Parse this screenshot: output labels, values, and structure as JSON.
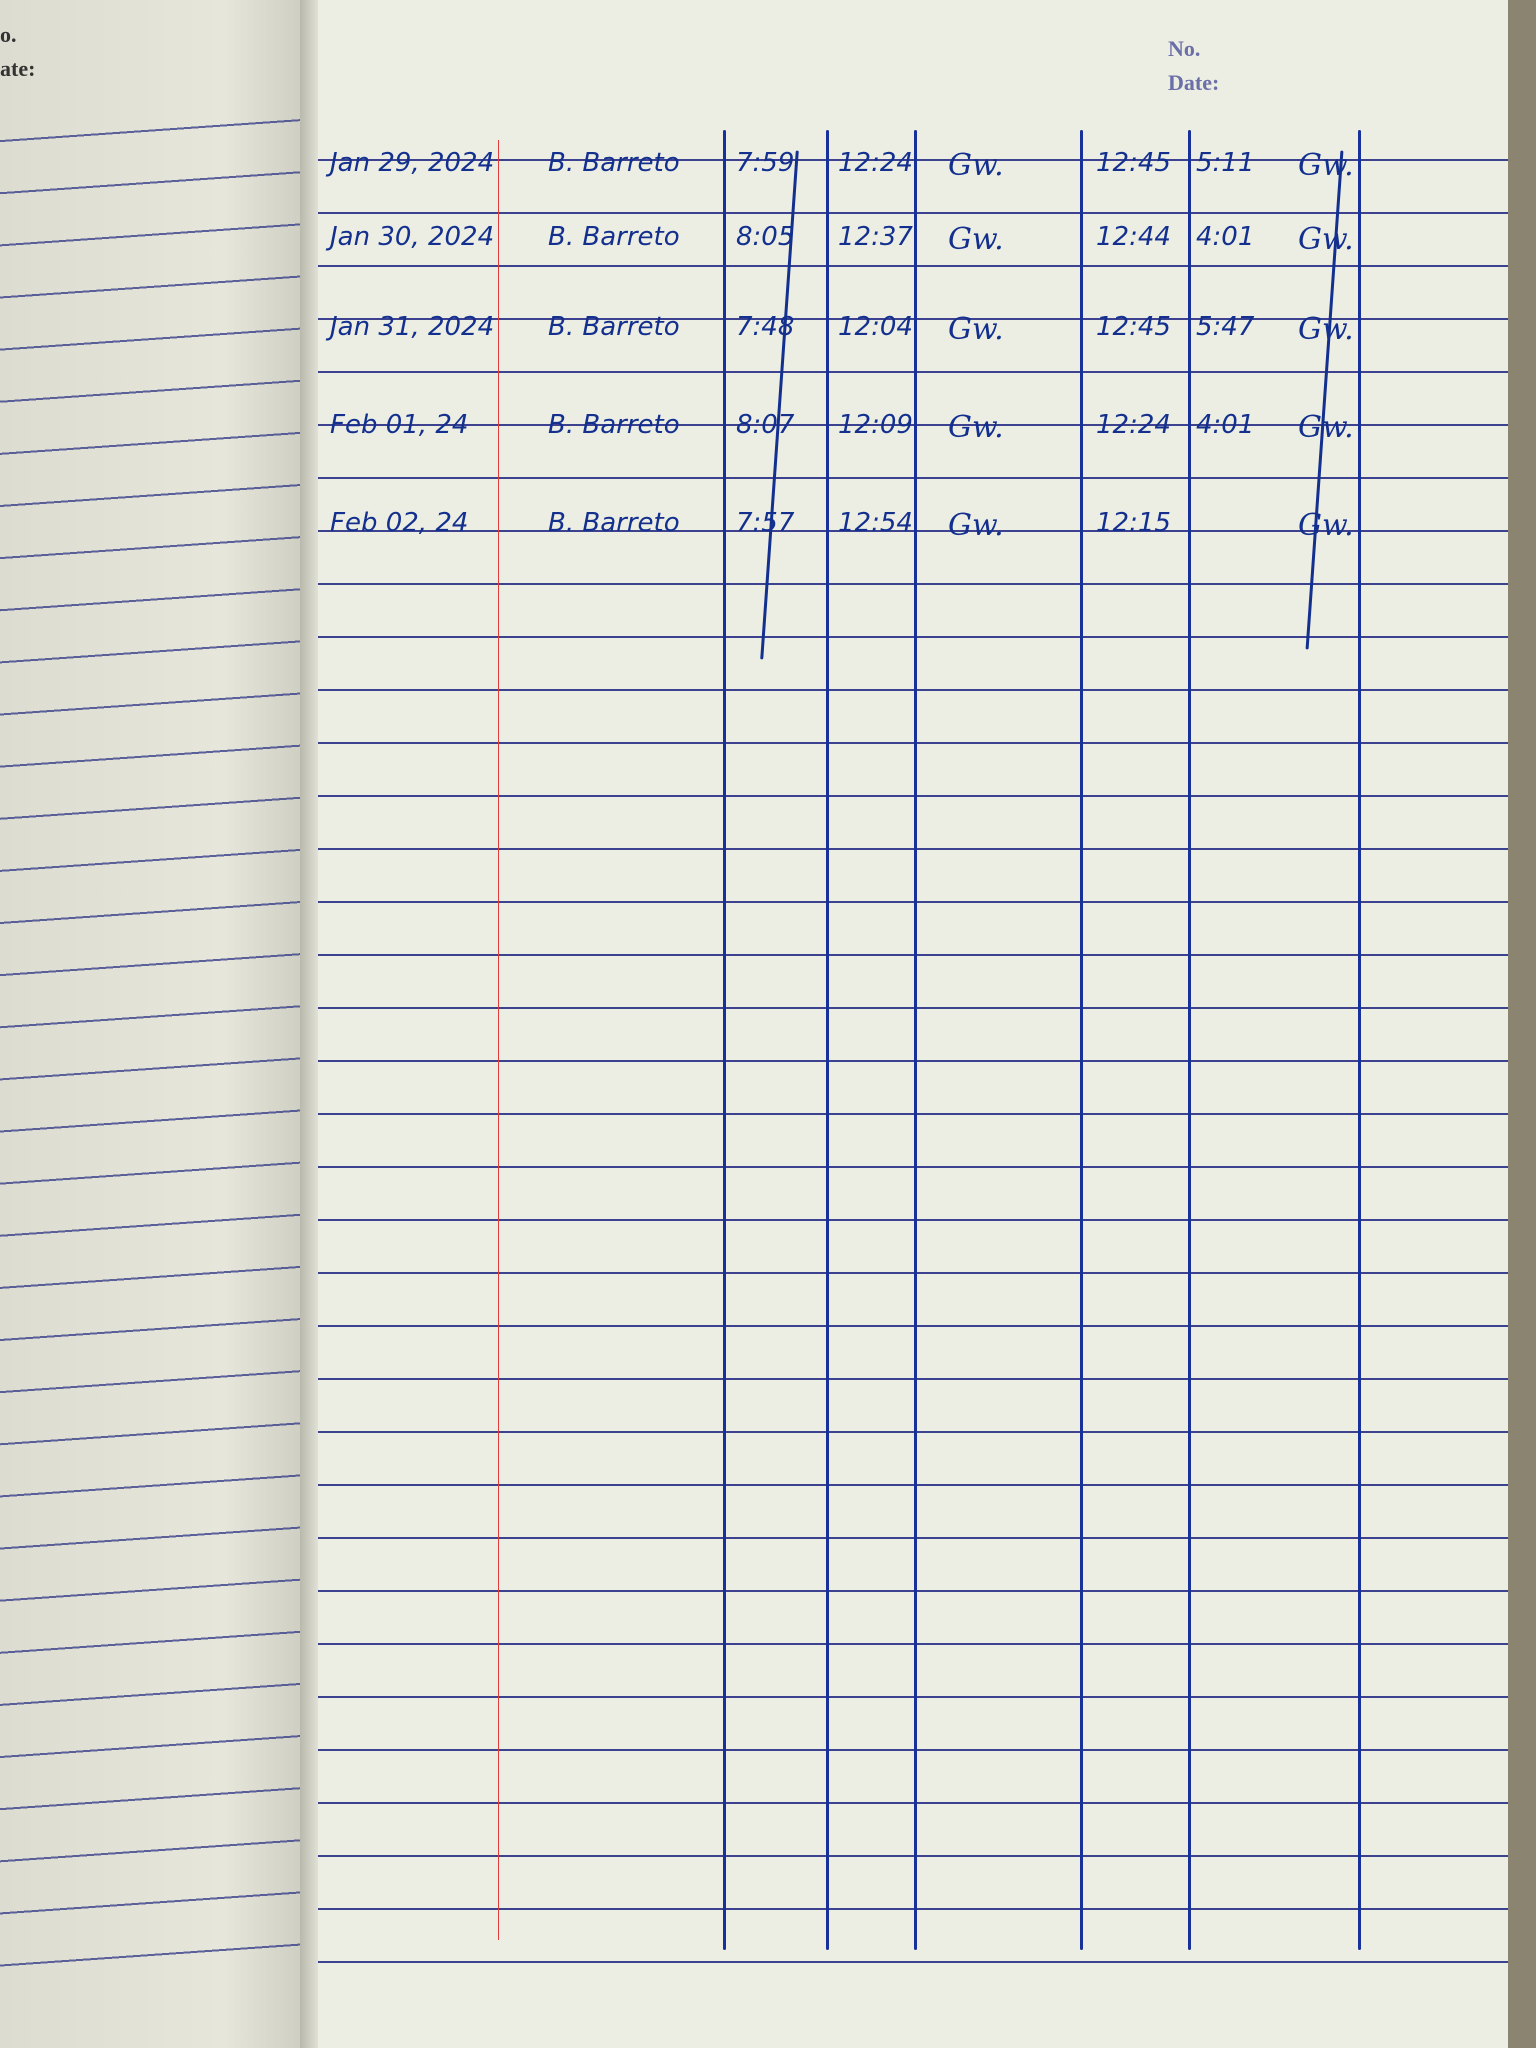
{
  "left_page": {
    "header_no": "o.",
    "header_date": "ate:"
  },
  "right_page": {
    "header_no": "No.",
    "header_date": "Date:"
  },
  "log": {
    "rows": [
      {
        "date": "Jan 29, 2024",
        "name": "B. Barreto",
        "time_in_am": "7:59",
        "time_out_am": "12:24",
        "signature_am": "Gw.",
        "time_in_pm": "12:45",
        "time_out_pm": "5:11",
        "signature_pm": "Gw."
      },
      {
        "date": "Jan 30, 2024",
        "name": "B. Barreto",
        "time_in_am": "8:05",
        "time_out_am": "12:37",
        "signature_am": "Gw.",
        "time_in_pm": "12:44",
        "time_out_pm": "4:01",
        "signature_pm": "Gw."
      },
      {
        "date": "Jan 31, 2024",
        "name": "B. Barreto",
        "time_in_am": "7:48",
        "time_out_am": "12:04",
        "signature_am": "Gw.",
        "time_in_pm": "12:45",
        "time_out_pm": "5:47",
        "signature_pm": "Gw."
      },
      {
        "date": "Feb 01, 24",
        "name": "B. Barreto",
        "time_in_am": "8:07",
        "time_out_am": "12:09",
        "signature_am": "Gw.",
        "time_in_pm": "12:24",
        "time_out_pm": "4:01",
        "signature_pm": "Gw."
      },
      {
        "date": "Feb 02, 24",
        "name": "B. Barreto",
        "time_in_am": "7:57",
        "time_out_am": "12:54",
        "signature_am": "Gw.",
        "time_in_pm": "12:15",
        "time_out_pm": "",
        "signature_pm": "Gw."
      }
    ]
  },
  "colors": {
    "ink": "#13308f",
    "ruling": "#3c4290",
    "margin": "#e03a3a",
    "paper": "#ecede3"
  }
}
